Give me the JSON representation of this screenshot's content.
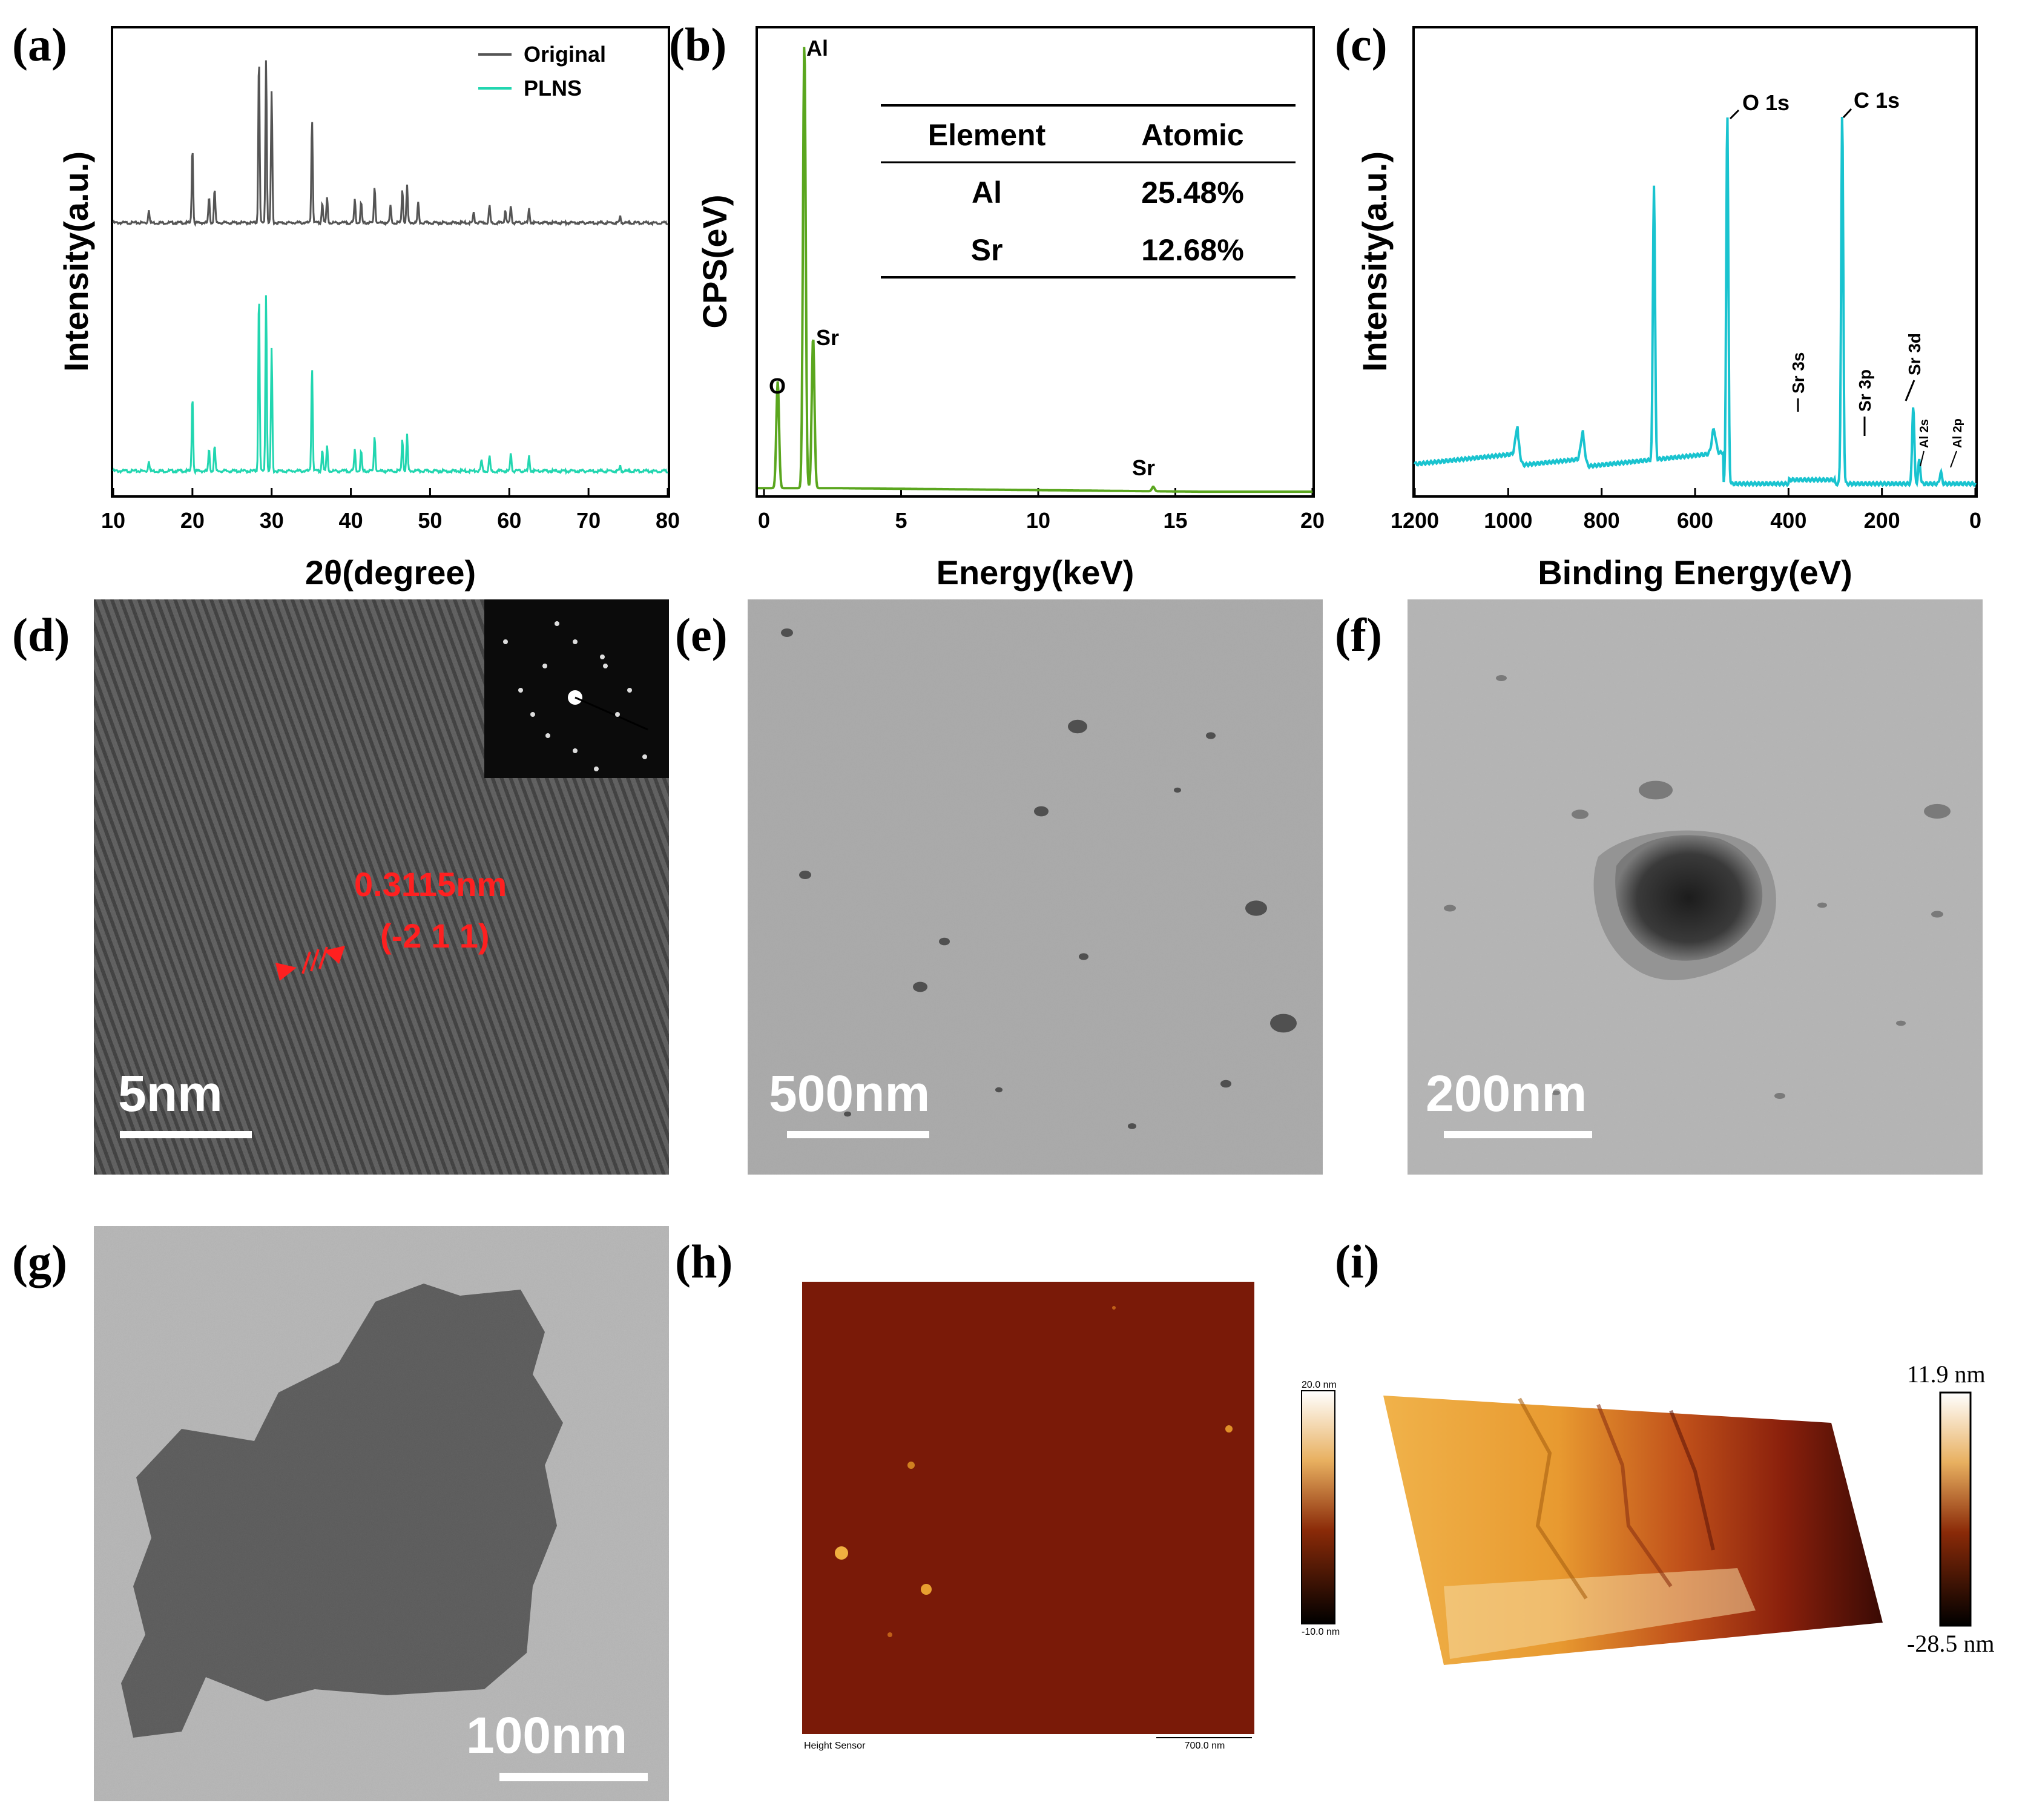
{
  "panels": {
    "a": {
      "label": "(a)",
      "xlabel": "2θ(degree)",
      "ylabel": "Intensity(a.u.)"
    },
    "b": {
      "label": "(b)",
      "xlabel": "Energy(keV)",
      "ylabel": "CPS(eV)"
    },
    "c": {
      "label": "(c)",
      "xlabel": "Binding Energy(eV)",
      "ylabel": "Intensity(a.u.)"
    },
    "d": {
      "label": "(d)",
      "scale": "5nm",
      "spacing": "0.3115nm",
      "plane": "(-2 1 1)"
    },
    "e": {
      "label": "(e)",
      "scale": "500nm"
    },
    "f": {
      "label": "(f)",
      "scale": "200nm"
    },
    "g": {
      "label": "(g)",
      "scale": "100nm"
    },
    "h": {
      "label": "(h)",
      "sensor": "Height Sensor",
      "scale": "700.0 nm",
      "cb_max": "20.0 nm",
      "cb_min": "-10.0 nm"
    },
    "i": {
      "label": "(i)",
      "cb_max": "11.9 nm",
      "cb_min": "-28.5 nm"
    }
  },
  "colors": {
    "original": "#555555",
    "plns": "#22d6b0",
    "eds": "#5aa61e",
    "xps": "#19c3cf",
    "red": "#ff2020"
  },
  "chart_data": [
    {
      "type": "line",
      "panel": "a",
      "xlabel": "2θ(degree)",
      "ylabel": "Intensity(a.u.)",
      "xlim": [
        10,
        80
      ],
      "xticks": [
        "10",
        "20",
        "30",
        "40",
        "50",
        "60",
        "70",
        "80"
      ],
      "legend": "top-right",
      "series": [
        {
          "name": "Original",
          "peaks": [
            [
              14.5,
              0.08
            ],
            [
              20.0,
              0.45
            ],
            [
              22.1,
              0.15
            ],
            [
              22.8,
              0.2
            ],
            [
              28.4,
              1.0
            ],
            [
              29.3,
              0.97
            ],
            [
              30.0,
              0.78
            ],
            [
              35.1,
              0.62
            ],
            [
              36.4,
              0.12
            ],
            [
              37.0,
              0.15
            ],
            [
              40.5,
              0.14
            ],
            [
              41.3,
              0.12
            ],
            [
              43.0,
              0.22
            ],
            [
              45.0,
              0.1
            ],
            [
              46.5,
              0.2
            ],
            [
              47.1,
              0.22
            ],
            [
              48.5,
              0.12
            ],
            [
              55.5,
              0.06
            ],
            [
              57.5,
              0.1
            ],
            [
              59.5,
              0.08
            ],
            [
              60.2,
              0.1
            ],
            [
              62.5,
              0.08
            ],
            [
              74.0,
              0.04
            ]
          ]
        },
        {
          "name": "PLNS",
          "peaks": [
            [
              14.5,
              0.06
            ],
            [
              20.0,
              0.42
            ],
            [
              22.1,
              0.12
            ],
            [
              22.8,
              0.14
            ],
            [
              28.4,
              1.0
            ],
            [
              29.3,
              0.98
            ],
            [
              30.0,
              0.68
            ],
            [
              35.1,
              0.58
            ],
            [
              36.4,
              0.12
            ],
            [
              37.0,
              0.14
            ],
            [
              40.5,
              0.12
            ],
            [
              41.3,
              0.11
            ],
            [
              43.0,
              0.2
            ],
            [
              46.5,
              0.18
            ],
            [
              47.1,
              0.2
            ],
            [
              56.5,
              0.06
            ],
            [
              57.5,
              0.08
            ],
            [
              60.2,
              0.1
            ],
            [
              62.5,
              0.08
            ],
            [
              74.0,
              0.03
            ]
          ]
        }
      ]
    },
    {
      "type": "line",
      "panel": "b",
      "xlabel": "Energy(keV)",
      "ylabel": "CPS(eV)",
      "xlim": [
        0,
        20
      ],
      "xticks": [
        "0",
        "5",
        "10",
        "15",
        "20"
      ],
      "peaks": [
        [
          0.52,
          0.24
        ],
        [
          1.49,
          1.0
        ],
        [
          1.81,
          0.34
        ],
        [
          14.2,
          0.01
        ]
      ],
      "annotations": [
        "Al",
        "O",
        "Sr",
        "Sr"
      ],
      "table": {
        "headers": [
          "Element",
          "Atomic"
        ],
        "rows": [
          [
            "Al",
            "25.48%"
          ],
          [
            "Sr",
            "12.68%"
          ]
        ]
      }
    },
    {
      "type": "line",
      "panel": "c",
      "xlabel": "Binding Energy(eV)",
      "ylabel": "Intensity(a.u.)",
      "xlim": [
        1200,
        0
      ],
      "xticks": [
        "1200",
        "1000",
        "800",
        "600",
        "400",
        "200",
        "0"
      ],
      "peaks": [
        [
          688,
          0.7
        ],
        [
          531,
          0.94
        ],
        [
          285,
          0.94
        ],
        [
          133,
          0.2
        ],
        [
          120,
          0.06
        ],
        [
          74,
          0.03
        ]
      ],
      "annotations": [
        "O 1s",
        "C 1s",
        "Sr 3s",
        "Sr 3p",
        "Sr 3d",
        "Al 2s",
        "Al 2p"
      ]
    }
  ]
}
